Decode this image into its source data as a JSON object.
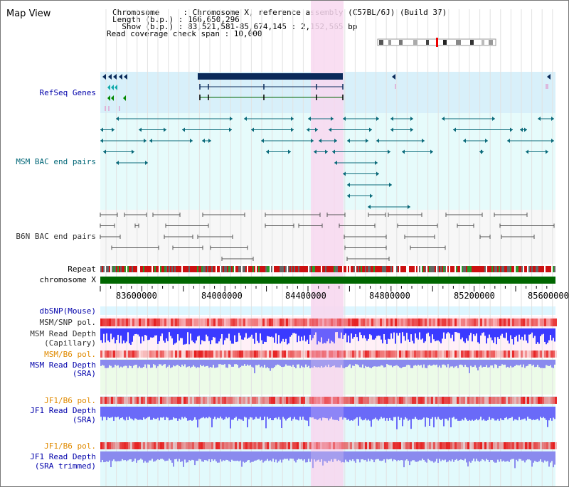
{
  "page_title": "Map View",
  "header_info": {
    "chromosome": "Chromosome     : Chromosome X, reference assembly (C57BL/6J) (Build 37)",
    "length": "Length (b.p.) : 166,650,296",
    "show": "  Show (b.p.) : 83,521,581-85,674,145 : 2,152,565 bp",
    "coverage": "Read coverage check span : 10,000"
  },
  "track_labels": {
    "refseq": "RefSeq Genes",
    "msm_bac": "MSM BAC end pairs",
    "b6n_bac": "B6N BAC end pairs",
    "repeat": "Repeat",
    "chromosome": "chromosome X",
    "dbsnp": "dbSNP(Mouse)",
    "msm_snp": "MSM/SNP pol.",
    "msm_read_depth_cap_1": "MSM Read Depth",
    "msm_read_depth_cap_2": "(Capillary)",
    "msm_b6_pol": "MSM/B6 pol.",
    "msm_read_depth_sra_1": "MSM Read Depth",
    "msm_read_depth_sra_2": "(SRA)",
    "jf1_b6_pol_1": "JF1/B6 pol.",
    "jf1_read_depth_sra_1": "JF1 Read Depth",
    "jf1_read_depth_sra_2": "(SRA)",
    "jf1_b6_pol_2": "JF1/B6 pol.",
    "jf1_read_depth_trim_1": "JF1 Read Depth",
    "jf1_read_depth_trim_2": "(SRA trimmed)"
  },
  "axis": {
    "ticks": [
      "83600000",
      "84000000",
      "84400000",
      "84800000",
      "85200000",
      "85600000"
    ]
  },
  "colors": {
    "highlight": "#f8d8f0",
    "refseq_bg": "#d8f0fa",
    "bac_bg": "#e6fbfb",
    "b6n_bg": "#f7f7f7",
    "gene_dark": "#0a2a5a",
    "gene_green": "#006600",
    "msm_line": "#0a6a7a",
    "b6n_line": "#555555",
    "chrom_green": "#006600",
    "depth_blue": "#3a3aff",
    "depth_light": "#8a8aee",
    "pol_red": "#ee3333",
    "label_blue": "#0000aa",
    "label_orange": "#e08a00"
  }
}
